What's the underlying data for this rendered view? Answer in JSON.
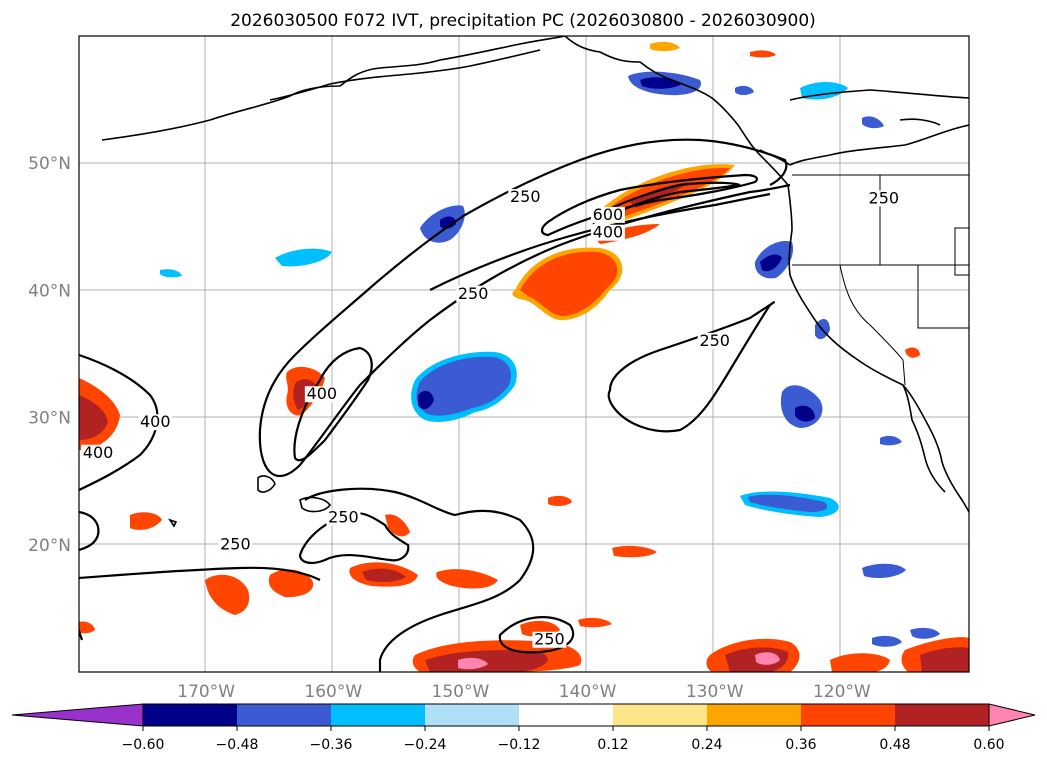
{
  "chart_data": {
    "type": "map",
    "title": "2026030500 F072 IVT, precipitation PC (2026030800 - 2026030900)",
    "lat_labels": [
      "50°N",
      "40°N",
      "30°N",
      "20°N"
    ],
    "lon_labels": [
      "170°W",
      "160°W",
      "150°W",
      "140°W",
      "130°W",
      "120°W"
    ],
    "colorbar": {
      "ticks": [
        "−0.60",
        "−0.48",
        "−0.36",
        "−0.24",
        "−0.12",
        "0.12",
        "0.24",
        "0.36",
        "0.48",
        "0.60"
      ],
      "colors": [
        "#9932cc",
        "#00008b",
        "#3a5bd1",
        "#00bfff",
        "#b0e0f8",
        "#ffffff",
        "#fde68a",
        "#ffa500",
        "#ff4500",
        "#b22222",
        "#ff85b0"
      ]
    },
    "ivt_contour_levels": [
      250,
      400,
      600
    ],
    "contour_labels": [
      {
        "text": "250",
        "x": -144.9,
        "y": 47.1
      },
      {
        "text": "600",
        "x": -138.4,
        "y": 45.7
      },
      {
        "text": "400",
        "x": -138.4,
        "y": 44.3
      },
      {
        "text": "250",
        "x": -149.0,
        "y": 39.5
      },
      {
        "text": "250",
        "x": -130.0,
        "y": 35.8
      },
      {
        "text": "400",
        "x": -160.9,
        "y": 31.6
      },
      {
        "text": "400",
        "x": -174.0,
        "y": 29.4
      },
      {
        "text": "400",
        "x": -178.5,
        "y": 27.0
      },
      {
        "text": "250",
        "x": -159.2,
        "y": 21.9
      },
      {
        "text": "250",
        "x": -167.7,
        "y": 19.8
      },
      {
        "text": "250",
        "x": -143.0,
        "y": 12.3
      },
      {
        "text": "250",
        "x": -116.7,
        "y": 47.0
      }
    ]
  }
}
